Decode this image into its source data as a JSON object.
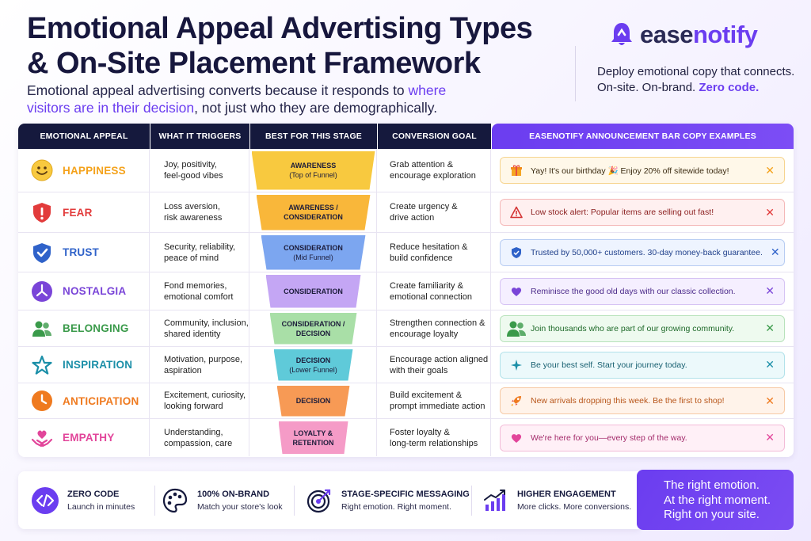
{
  "header": {
    "title_line1": "Emotional Appeal Advertising Types",
    "title_line2": "& On-Site Placement Framework",
    "subtitle_part1": "Emotional appeal advertising converts because it responds to ",
    "subtitle_highlight": "where visitors are in their decision",
    "subtitle_part2": ", not just who they are demographically."
  },
  "brand": {
    "name_part1": "ease",
    "name_part2": "notify",
    "tagline_line1": "Deploy emotional copy that connects.",
    "tagline_line2": "On-site. On-brand. ",
    "tagline_highlight": "Zero code."
  },
  "table": {
    "headers": [
      "EMOTIONAL APPEAL",
      "WHAT IT TRIGGERS",
      "BEST FOR THIS STAGE",
      "CONVERSION GOAL",
      "EASENOTIFY ANNOUNCEMENT BAR COPY EXAMPLES"
    ],
    "rows": [
      {
        "appeal": "HAPPINESS",
        "color": "#f4a21b",
        "icon": "smiley-icon",
        "trigger_l1": "Joy, positivity,",
        "trigger_l2": "feel-good vibes",
        "stage_l1": "AWARENESS",
        "stage_l2": "(Top of Funnel)",
        "stage_color": "#f8c93f",
        "goal_l1": "Grab attention &",
        "goal_l2": "encourage exploration",
        "bar_icon": "gift-icon",
        "bar_text": "Yay! It's our birthday 🎉  Enjoy 20% off sitewide today!",
        "bar_bg": "#fff8e9",
        "bar_border": "#f6d48e"
      },
      {
        "appeal": "FEAR",
        "color": "#e23b3b",
        "icon": "warning-shield-icon",
        "trigger_l1": "Loss aversion,",
        "trigger_l2": "risk awareness",
        "stage_l1": "AWARENESS /",
        "stage_l2": "CONSIDERATION",
        "stage_color": "#f9b73a",
        "goal_l1": "Create urgency &",
        "goal_l2": "drive action",
        "bar_icon": "warning-icon",
        "bar_text": "Low stock alert: Popular items are selling out fast!",
        "bar_bg": "#fff0f0",
        "bar_border": "#f4b7b7"
      },
      {
        "appeal": "TRUST",
        "color": "#2f62c9",
        "icon": "shield-check-icon",
        "trigger_l1": "Security, reliability,",
        "trigger_l2": "peace of mind",
        "stage_l1": "CONSIDERATION",
        "stage_l2": "(Mid Funnel)",
        "stage_color": "#7ca6f0",
        "goal_l1": "Reduce hesitation &",
        "goal_l2": "build confidence",
        "bar_icon": "shield-icon",
        "bar_text": "Trusted by 50,000+ customers. 30-day money-back guarantee.",
        "bar_bg": "#eef4ff",
        "bar_border": "#b7ccf2"
      },
      {
        "appeal": "NOSTALGIA",
        "color": "#7a45d8",
        "icon": "clock-icon",
        "trigger_l1": "Fond memories,",
        "trigger_l2": "emotional comfort",
        "stage_l1": "CONSIDERATION",
        "stage_l2": "",
        "stage_color": "#c4a6f4",
        "goal_l1": "Create familiarity &",
        "goal_l2": "emotional connection",
        "bar_icon": "heart-icon",
        "bar_text": "Reminisce the good old days with our classic collection.",
        "bar_bg": "#f5efff",
        "bar_border": "#d6c3f4"
      },
      {
        "appeal": "BELONGING",
        "color": "#3a9a4a",
        "icon": "people-icon",
        "trigger_l1": "Community, inclusion,",
        "trigger_l2": "shared identity",
        "stage_l1": "CONSIDERATION /",
        "stage_l2": "DECISION",
        "stage_color": "#a9dfa7",
        "goal_l1": "Strengthen connection &",
        "goal_l2": "encourage loyalty",
        "bar_icon": "people-icon",
        "bar_text": "Join thousands who are part of our growing community.",
        "bar_bg": "#eefaef",
        "bar_border": "#b7e2bb"
      },
      {
        "appeal": "INSPIRATION",
        "color": "#1b8fa8",
        "icon": "star-icon",
        "trigger_l1": "Motivation, purpose,",
        "trigger_l2": "aspiration",
        "stage_l1": "DECISION",
        "stage_l2": "(Lower Funnel)",
        "stage_color": "#5fcad9",
        "goal_l1": "Encourage action aligned",
        "goal_l2": "with their goals",
        "bar_icon": "sparkle-icon",
        "bar_text": "Be your best self. Start your journey today.",
        "bar_bg": "#ecf9fb",
        "bar_border": "#b2e2ea"
      },
      {
        "appeal": "ANTICIPATION",
        "color": "#ef7a1f",
        "icon": "timer-icon",
        "trigger_l1": "Excitement, curiosity,",
        "trigger_l2": "looking forward",
        "stage_l1": "DECISION",
        "stage_l2": "",
        "stage_color": "#f79a55",
        "goal_l1": "Build excitement &",
        "goal_l2": "prompt immediate action",
        "bar_icon": "rocket-icon",
        "bar_text": "New arrivals dropping this week. Be the first to shop!",
        "bar_bg": "#fff3ea",
        "bar_border": "#f6c9a5"
      },
      {
        "appeal": "EMPATHY",
        "color": "#e2459a",
        "icon": "heart-hands-icon",
        "trigger_l1": "Understanding,",
        "trigger_l2": "compassion, care",
        "stage_l1": "LOYALTY &",
        "stage_l2": "RETENTION",
        "stage_color": "#f59bc7",
        "goal_l1": "Foster loyalty &",
        "goal_l2": "long-term relationships",
        "bar_icon": "heart-icon",
        "bar_text": "We're here for you—every step of the way.",
        "bar_bg": "#fff0f7",
        "bar_border": "#f3bcd8"
      }
    ]
  },
  "footer": {
    "features": [
      {
        "title": "ZERO CODE",
        "subtitle": "Launch in minutes",
        "icon": "code-icon"
      },
      {
        "title": "100% ON-BRAND",
        "subtitle": "Match your store's look",
        "icon": "palette-icon"
      },
      {
        "title": "STAGE-SPECIFIC MESSAGING",
        "subtitle": "Right emotion. Right moment.",
        "icon": "target-icon"
      },
      {
        "title": "HIGHER ENGAGEMENT",
        "subtitle": "More clicks. More conversions.",
        "icon": "growth-chart-icon"
      }
    ],
    "cta_line1": "The right emotion.",
    "cta_line2": "At the right moment.",
    "cta_line3": "Right on your site."
  },
  "colors": {
    "accent": "#6b3df0",
    "navy": "#15193d"
  }
}
